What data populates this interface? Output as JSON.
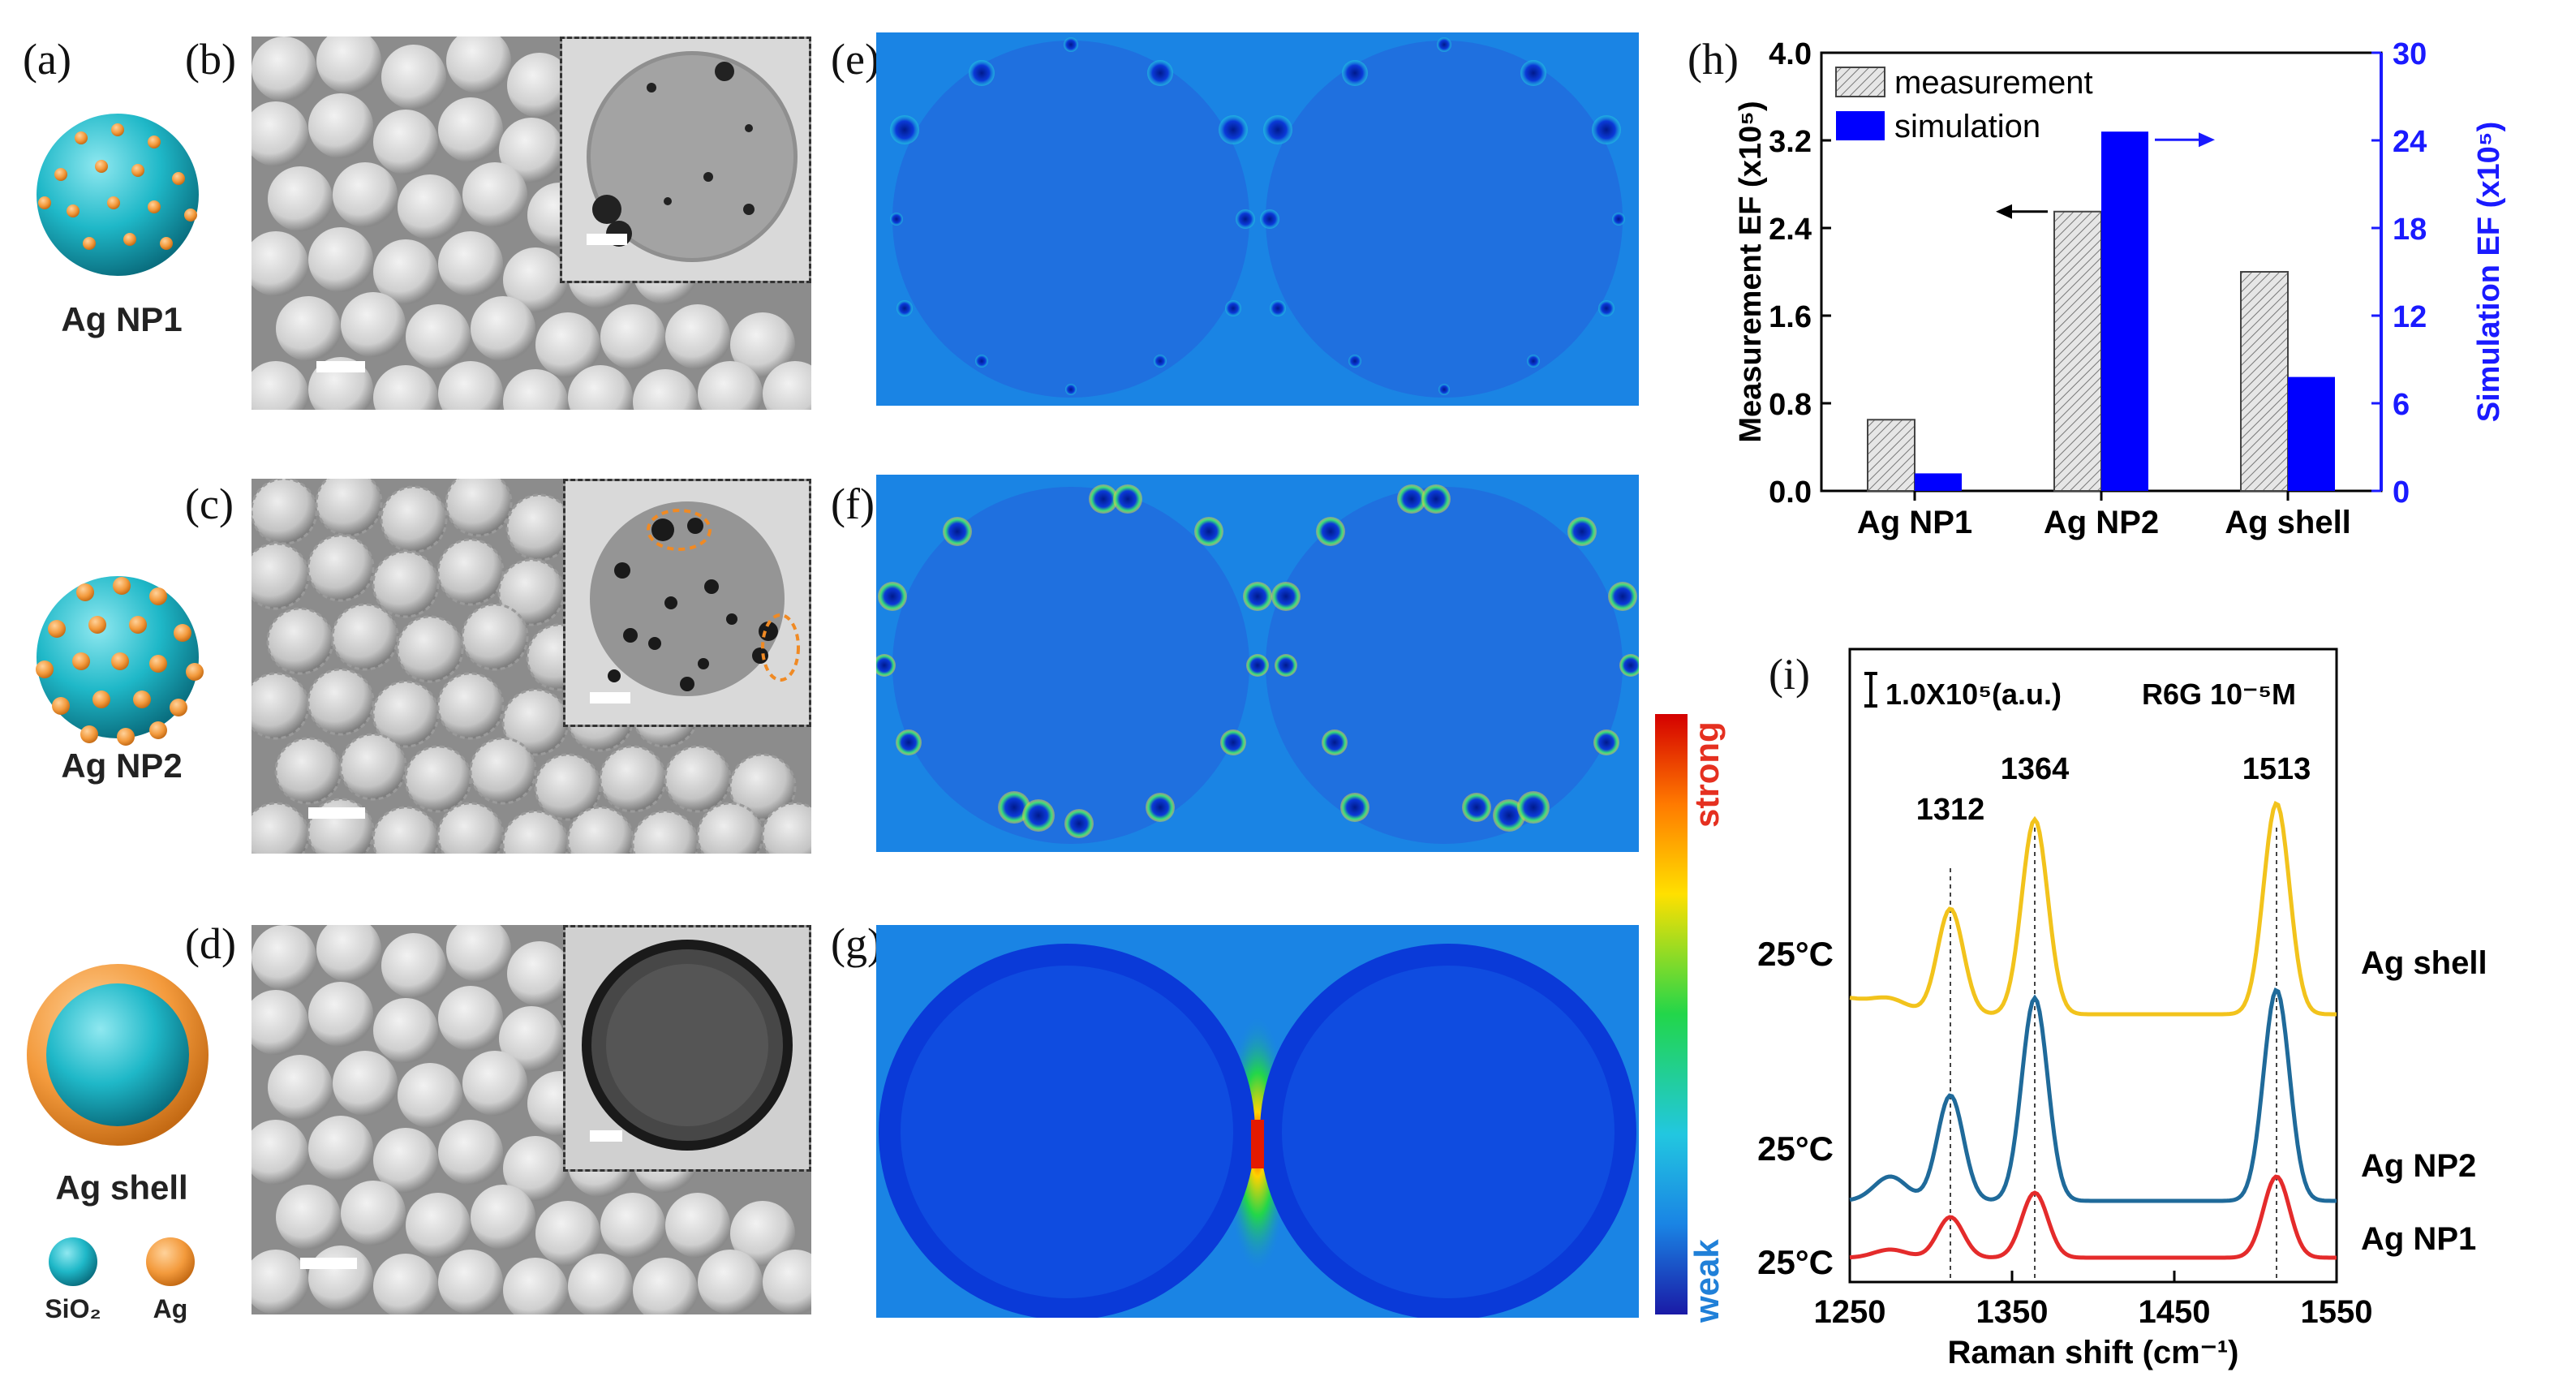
{
  "panels": {
    "a": "(a)",
    "b": "(b)",
    "c": "(c)",
    "d": "(d)",
    "e": "(e)",
    "f": "(f)",
    "g": "(g)",
    "h": "(h)",
    "i": "(i)"
  },
  "schematic": {
    "np1_label": "Ag NP1",
    "np2_label": "Ag NP2",
    "shell_label": "Ag shell",
    "legend_sio2": "SiO₂",
    "legend_ag": "Ag",
    "colors": {
      "sio2": "#1fb8c8",
      "ag": "#f39a3c"
    }
  },
  "colorbar": {
    "top_label": "strong",
    "bottom_label": "weak"
  },
  "chart_data": [
    {
      "type": "bar",
      "categories": [
        "Ag NP1",
        "Ag NP2",
        "Ag shell"
      ],
      "series": [
        {
          "name": "measurement",
          "axis": "left",
          "values": [
            0.65,
            2.55,
            2.0
          ],
          "color": "#cccccc"
        },
        {
          "name": "simulation",
          "axis": "right",
          "values": [
            1.2,
            24.6,
            7.8
          ],
          "color": "#0000ff"
        }
      ],
      "ylabel": "Measurement EF (x10⁵)",
      "y2label": "Simulation EF (x10⁵)",
      "ylim": [
        0,
        4.0
      ],
      "y2lim": [
        0,
        30
      ],
      "yticks": [
        "0.0",
        "0.8",
        "1.6",
        "2.4",
        "3.2",
        "4.0"
      ],
      "y2ticks": [
        "0",
        "6",
        "12",
        "18",
        "24",
        "30"
      ],
      "legend": "top-left"
    },
    {
      "type": "line",
      "xlabel": "Raman shift (cm⁻¹)",
      "xlim": [
        1250,
        1550
      ],
      "xticks": [
        "1250",
        "1350",
        "1450",
        "1550"
      ],
      "scale_label": "1.0X10⁵(a.u.)",
      "sample_label": "R6G 10⁻⁵M",
      "peaks": [
        "1312",
        "1364",
        "1513"
      ],
      "series": [
        {
          "name": "Ag shell",
          "temp": "25°C",
          "color": "#f2c31c"
        },
        {
          "name": "Ag NP2",
          "temp": "25°C",
          "color": "#1f6a9a"
        },
        {
          "name": "Ag NP1",
          "temp": "25°C",
          "color": "#e42b2b"
        }
      ]
    }
  ]
}
